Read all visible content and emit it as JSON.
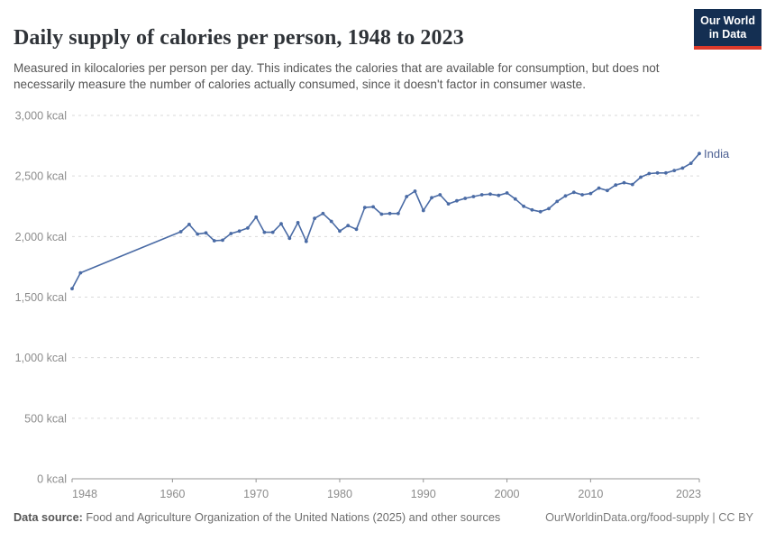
{
  "header": {
    "title": "Daily supply of calories per person, 1948 to 2023",
    "subtitle": "Measured in kilocalories per person per day. This indicates the calories that are available for consumption, but does not necessarily measure the number of calories actually consumed, since it doesn't factor in consumer waste.",
    "logo": {
      "line1": "Our World",
      "line2": "in Data"
    }
  },
  "footer": {
    "source_label": "Data source:",
    "source_text": " Food and Agriculture Organization of the United Nations (2025) and other sources",
    "link_text": "OurWorldinData.org/food-supply | CC BY"
  },
  "chart_data": {
    "type": "line",
    "title": "Daily supply of calories per person, 1948 to 2023",
    "entity_label": "India",
    "unit_suffix": " kcal",
    "xlabel": "",
    "ylabel": "",
    "xlim": [
      1948,
      2023
    ],
    "ylim": [
      0,
      3000
    ],
    "x_ticks": [
      1948,
      1960,
      1970,
      1980,
      1990,
      2000,
      2010,
      2023
    ],
    "y_ticks": [
      0,
      500,
      1000,
      1500,
      2000,
      2500,
      3000
    ],
    "grid": "horizontal-dashed",
    "legend_position": "end-of-line-label",
    "line_color": "#4a6ba5",
    "marker_color": "#4a6ba5",
    "entity_label_color": "#4c5f92",
    "points": [
      [
        1948,
        1570
      ],
      [
        1949,
        1700
      ],
      [
        1961,
        2040
      ],
      [
        1962,
        2100
      ],
      [
        1963,
        2020
      ],
      [
        1964,
        2030
      ],
      [
        1965,
        1965
      ],
      [
        1966,
        1970
      ],
      [
        1967,
        2025
      ],
      [
        1968,
        2045
      ],
      [
        1969,
        2070
      ],
      [
        1970,
        2160
      ],
      [
        1971,
        2035
      ],
      [
        1972,
        2035
      ],
      [
        1973,
        2105
      ],
      [
        1974,
        1985
      ],
      [
        1975,
        2115
      ],
      [
        1976,
        1960
      ],
      [
        1977,
        2150
      ],
      [
        1978,
        2190
      ],
      [
        1979,
        2125
      ],
      [
        1980,
        2045
      ],
      [
        1981,
        2090
      ],
      [
        1982,
        2060
      ],
      [
        1983,
        2240
      ],
      [
        1984,
        2245
      ],
      [
        1985,
        2185
      ],
      [
        1986,
        2190
      ],
      [
        1987,
        2190
      ],
      [
        1988,
        2330
      ],
      [
        1989,
        2375
      ],
      [
        1990,
        2215
      ],
      [
        1991,
        2320
      ],
      [
        1992,
        2345
      ],
      [
        1993,
        2270
      ],
      [
        1994,
        2295
      ],
      [
        1995,
        2315
      ],
      [
        1996,
        2330
      ],
      [
        1997,
        2345
      ],
      [
        1998,
        2350
      ],
      [
        1999,
        2340
      ],
      [
        2000,
        2360
      ],
      [
        2001,
        2310
      ],
      [
        2002,
        2250
      ],
      [
        2003,
        2220
      ],
      [
        2004,
        2205
      ],
      [
        2005,
        2230
      ],
      [
        2006,
        2290
      ],
      [
        2007,
        2335
      ],
      [
        2008,
        2365
      ],
      [
        2009,
        2345
      ],
      [
        2010,
        2355
      ],
      [
        2011,
        2400
      ],
      [
        2012,
        2380
      ],
      [
        2013,
        2425
      ],
      [
        2014,
        2445
      ],
      [
        2015,
        2430
      ],
      [
        2016,
        2490
      ],
      [
        2017,
        2520
      ],
      [
        2018,
        2525
      ],
      [
        2019,
        2525
      ],
      [
        2020,
        2545
      ],
      [
        2021,
        2565
      ],
      [
        2022,
        2605
      ],
      [
        2023,
        2685
      ]
    ]
  }
}
